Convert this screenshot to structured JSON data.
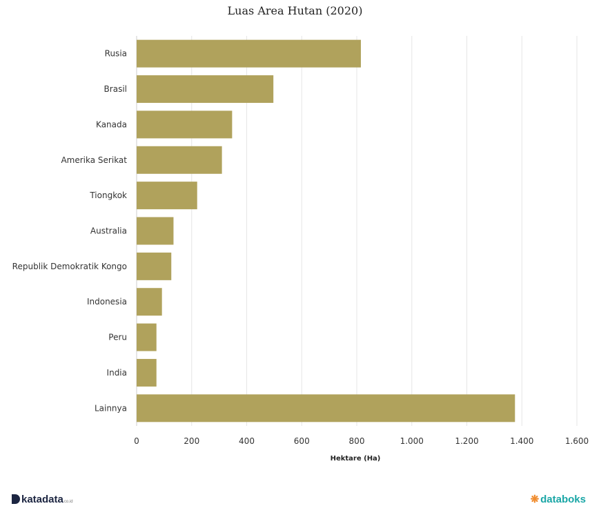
{
  "chart_data": {
    "type": "bar",
    "orientation": "horizontal",
    "title": "Luas Area Hutan (2020)",
    "xlabel": "Hektare (Ha)",
    "ylabel": "",
    "categories": [
      "Rusia",
      "Brasil",
      "Kanada",
      "Amerika Serikat",
      "Tiongkok",
      "Australia",
      "Republik Demokratik Kongo",
      "Indonesia",
      "Peru",
      "India",
      "Lainnya"
    ],
    "values": [
      815,
      497,
      347,
      310,
      220,
      134,
      126,
      92,
      72,
      72,
      1375
    ],
    "xlim": [
      0,
      1600
    ],
    "xticks": [
      "0",
      "200",
      "400",
      "600",
      "800",
      "1.000",
      "1.200",
      "1.400",
      "1.600"
    ],
    "grid": true,
    "bar_color": "#b0a25c"
  },
  "branding": {
    "left_logo": "katadata",
    "left_logo_suffix": "co.id",
    "right_logo": "databoks"
  }
}
